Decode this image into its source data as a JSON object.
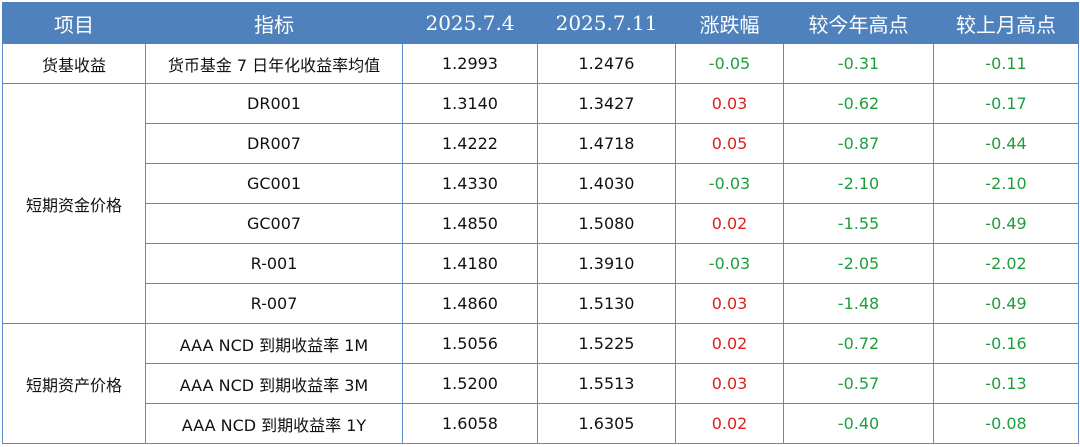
{
  "headers": [
    "项目",
    "指标",
    "2025.7.4",
    "2025.7.11",
    "涨跌幅",
    "较今年高点",
    "较上月高点"
  ],
  "colors": {
    "header_bg": "#4f81bd",
    "border": "#5b8cc5",
    "up": "#e02020",
    "down": "#1e9e3c"
  },
  "groups": [
    {
      "category": "货基收益",
      "rows": [
        {
          "indicator": "货币基金 7 日年化收益率均值",
          "v1": "1.2993",
          "v2": "1.2476",
          "change": "-0.05",
          "vs_year_high": "-0.31",
          "vs_month_high": "-0.11"
        }
      ]
    },
    {
      "category": "短期资金价格",
      "rows": [
        {
          "indicator": "DR001",
          "v1": "1.3140",
          "v2": "1.3427",
          "change": "0.03",
          "vs_year_high": "-0.62",
          "vs_month_high": "-0.17"
        },
        {
          "indicator": "DR007",
          "v1": "1.4222",
          "v2": "1.4718",
          "change": "0.05",
          "vs_year_high": "-0.87",
          "vs_month_high": "-0.44"
        },
        {
          "indicator": "GC001",
          "v1": "1.4330",
          "v2": "1.4030",
          "change": "-0.03",
          "vs_year_high": "-2.10",
          "vs_month_high": "-2.10"
        },
        {
          "indicator": "GC007",
          "v1": "1.4850",
          "v2": "1.5080",
          "change": "0.02",
          "vs_year_high": "-1.55",
          "vs_month_high": "-0.49"
        },
        {
          "indicator": "R-001",
          "v1": "1.4180",
          "v2": "1.3910",
          "change": "-0.03",
          "vs_year_high": "-2.05",
          "vs_month_high": "-2.02"
        },
        {
          "indicator": "R-007",
          "v1": "1.4860",
          "v2": "1.5130",
          "change": "0.03",
          "vs_year_high": "-1.48",
          "vs_month_high": "-0.49"
        }
      ]
    },
    {
      "category": "短期资产价格",
      "rows": [
        {
          "indicator": "AAA NCD 到期收益率 1M",
          "v1": "1.5056",
          "v2": "1.5225",
          "change": "0.02",
          "vs_year_high": "-0.72",
          "vs_month_high": "-0.16"
        },
        {
          "indicator": "AAA NCD 到期收益率 3M",
          "v1": "1.5200",
          "v2": "1.5513",
          "change": "0.03",
          "vs_year_high": "-0.57",
          "vs_month_high": "-0.13"
        },
        {
          "indicator": "AAA NCD 到期收益率 1Y",
          "v1": "1.6058",
          "v2": "1.6305",
          "change": "0.02",
          "vs_year_high": "-0.40",
          "vs_month_high": "-0.08"
        }
      ]
    }
  ]
}
